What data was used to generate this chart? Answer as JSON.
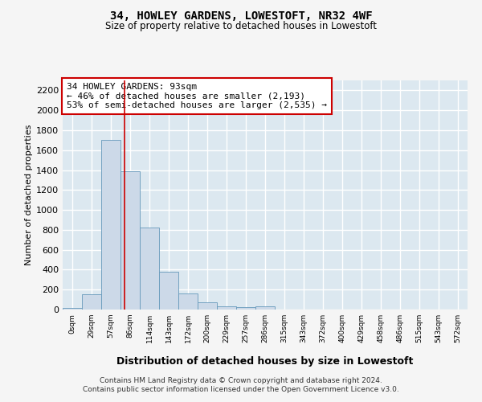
{
  "title": "34, HOWLEY GARDENS, LOWESTOFT, NR32 4WF",
  "subtitle": "Size of property relative to detached houses in Lowestoft",
  "xlabel": "Distribution of detached houses by size in Lowestoft",
  "ylabel": "Number of detached properties",
  "bar_color": "#ccd9e8",
  "bar_edge_color": "#6699bb",
  "background_color": "#dce8f0",
  "grid_color": "#ffffff",
  "fig_bg_color": "#f5f5f5",
  "categories": [
    "0sqm",
    "29sqm",
    "57sqm",
    "86sqm",
    "114sqm",
    "143sqm",
    "172sqm",
    "200sqm",
    "229sqm",
    "257sqm",
    "286sqm",
    "315sqm",
    "343sqm",
    "372sqm",
    "400sqm",
    "429sqm",
    "458sqm",
    "486sqm",
    "515sqm",
    "543sqm",
    "572sqm"
  ],
  "values": [
    15,
    155,
    1700,
    1390,
    825,
    380,
    160,
    70,
    35,
    25,
    30,
    0,
    0,
    0,
    0,
    0,
    0,
    0,
    0,
    0,
    0
  ],
  "ylim": [
    0,
    2300
  ],
  "yticks": [
    0,
    200,
    400,
    600,
    800,
    1000,
    1200,
    1400,
    1600,
    1800,
    2000,
    2200
  ],
  "vline_x": 2.72,
  "vline_color": "#cc0000",
  "annotation_text": "34 HOWLEY GARDENS: 93sqm\n← 46% of detached houses are smaller (2,193)\n53% of semi-detached houses are larger (2,535) →",
  "annotation_box_color": "#ffffff",
  "annotation_border_color": "#cc0000",
  "footer_line1": "Contains HM Land Registry data © Crown copyright and database right 2024.",
  "footer_line2": "Contains public sector information licensed under the Open Government Licence v3.0."
}
